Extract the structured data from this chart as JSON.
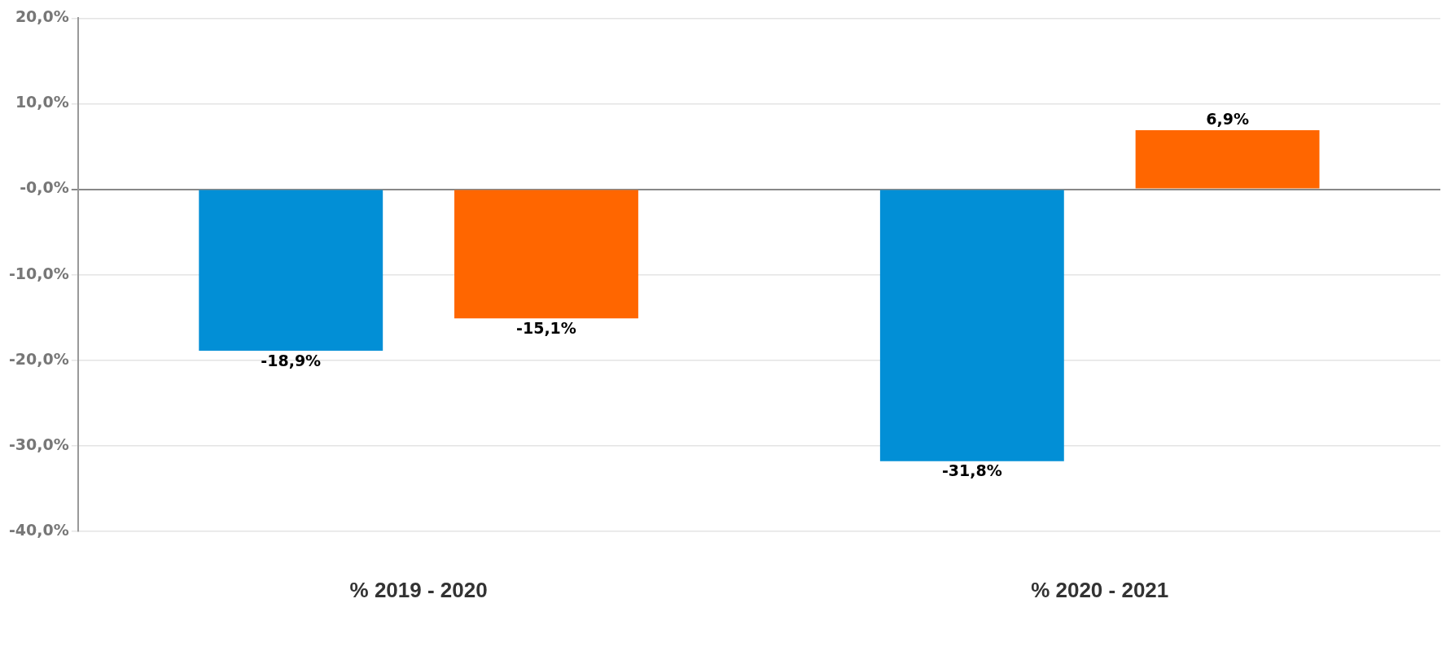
{
  "chart_data": {
    "type": "bar",
    "categories": [
      "% 2019 - 2020",
      "% 2020 - 2021"
    ],
    "series": [
      {
        "color": "#028fd6",
        "values": [
          -18.9,
          -31.8
        ],
        "value_labels": [
          "-18,9%",
          "-31,8%"
        ]
      },
      {
        "color": "#ff6600",
        "values": [
          -15.1,
          6.9
        ],
        "value_labels": [
          "-15,1%",
          "6,9%"
        ]
      }
    ],
    "ylim": [
      -40,
      20
    ],
    "yticks": [
      {
        "value": -40,
        "label": "-40,0%"
      },
      {
        "value": -30,
        "label": "-30,0%"
      },
      {
        "value": -20,
        "label": "-20,0%"
      },
      {
        "value": -10,
        "label": "-10,0%"
      },
      {
        "value": 0,
        "label": "-0,0%"
      },
      {
        "value": 10,
        "label": "10,0%"
      },
      {
        "value": 20,
        "label": "20,0%"
      }
    ],
    "grid": "y",
    "legend": false
  }
}
